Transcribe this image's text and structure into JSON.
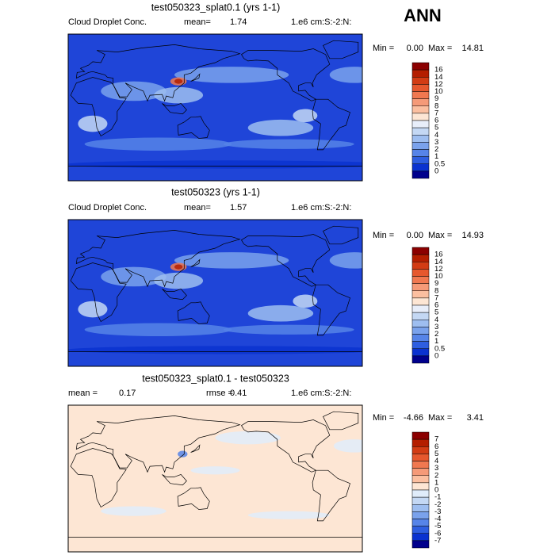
{
  "header": {
    "title": "ANN"
  },
  "panels": [
    {
      "title": "test050323_splat0.1 (yrs 1-1)",
      "variable": "Cloud Droplet Conc.",
      "stats": [
        {
          "label": "mean=",
          "value": "1.74"
        }
      ],
      "units": "1.e6 cm:S:-2:N:",
      "min_label": "Min =",
      "min": "0.00",
      "max_label": "Max =",
      "max": "14.81",
      "background_color": "#1f45d8",
      "colorbar": {
        "labels": [
          "16",
          "14",
          "12",
          "10",
          "9",
          "8",
          "7",
          "6",
          "5",
          "4",
          "3",
          "2",
          "1",
          "0.5",
          "0"
        ],
        "colors": [
          "#8b0000",
          "#b41e00",
          "#d23c14",
          "#e6582e",
          "#f07850",
          "#f59a78",
          "#fbbfa0",
          "#fde6d4",
          "#e8eefa",
          "#c4d8f4",
          "#9ebef0",
          "#7aa2ec",
          "#5684e8",
          "#2e5ee0",
          "#0a32d0",
          "#00008c"
        ]
      }
    },
    {
      "title": "test050323 (yrs 1-1)",
      "variable": "Cloud Droplet Conc.",
      "stats": [
        {
          "label": "mean=",
          "value": "1.57"
        }
      ],
      "units": "1.e6 cm:S:-2:N:",
      "min_label": "Min =",
      "min": "0.00",
      "max_label": "Max =",
      "max": "14.93",
      "background_color": "#1f45d8",
      "colorbar": {
        "labels": [
          "16",
          "14",
          "12",
          "10",
          "9",
          "8",
          "7",
          "6",
          "5",
          "4",
          "3",
          "2",
          "1",
          "0.5",
          "0"
        ],
        "colors": [
          "#8b0000",
          "#b41e00",
          "#d23c14",
          "#e6582e",
          "#f07850",
          "#f59a78",
          "#fbbfa0",
          "#fde6d4",
          "#e8eefa",
          "#c4d8f4",
          "#9ebef0",
          "#7aa2ec",
          "#5684e8",
          "#2e5ee0",
          "#0a32d0",
          "#00008c"
        ]
      }
    },
    {
      "title": "test050323_splat0.1 - test050323",
      "variable": null,
      "stats": [
        {
          "label": "mean =",
          "value": "0.17"
        },
        {
          "label": "rmse =",
          "value": "0.41"
        }
      ],
      "units": "1.e6 cm:S:-2:N:",
      "min_label": "Min =",
      "min": "-4.66",
      "max_label": "Max =",
      "max": "3.41",
      "background_color": "#fde6d4",
      "colorbar": {
        "labels": [
          "7",
          "6",
          "5",
          "4",
          "3",
          "2",
          "1",
          "0",
          "-1",
          "-2",
          "-3",
          "-4",
          "-5",
          "-6",
          "-7"
        ],
        "colors": [
          "#8b0000",
          "#b41e00",
          "#d23c14",
          "#e6582e",
          "#f07850",
          "#f59a78",
          "#fbbfa0",
          "#fde6d4",
          "#e0ecfa",
          "#c4d8f4",
          "#9ebef0",
          "#7aa2ec",
          "#5684e8",
          "#2e5ee0",
          "#0a32d0",
          "#00008c"
        ]
      }
    }
  ]
}
